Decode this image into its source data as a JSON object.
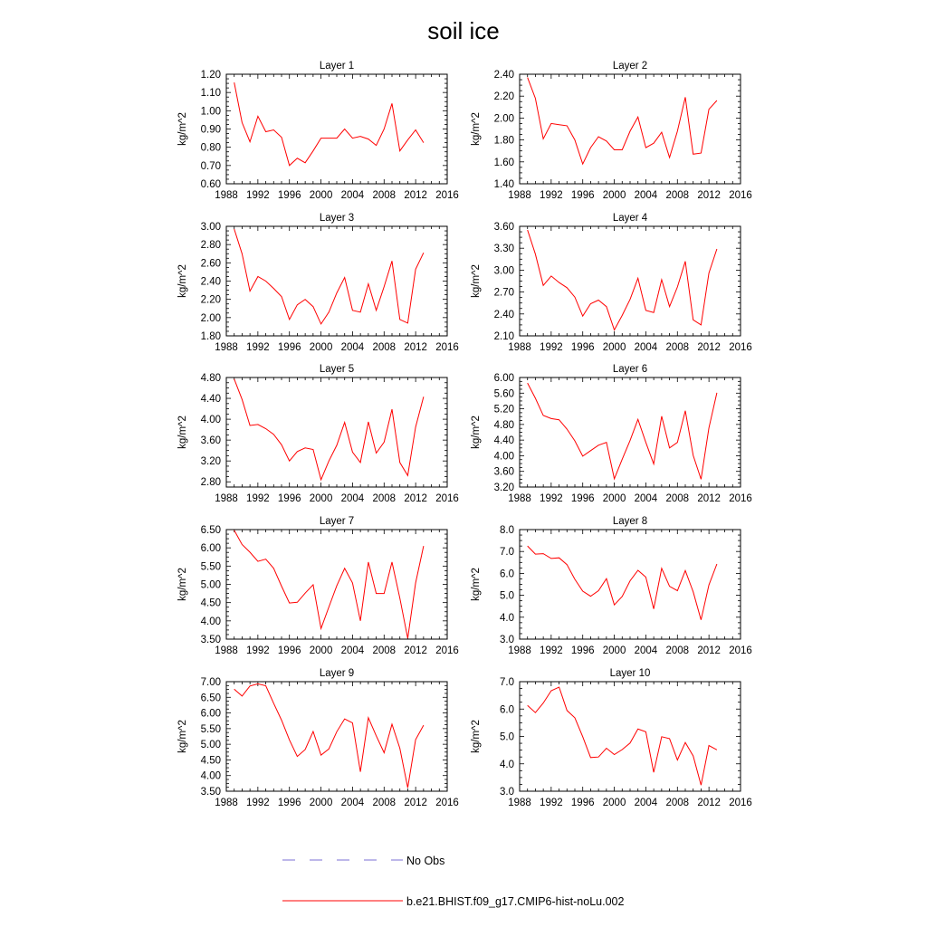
{
  "figure_title": "soil ice",
  "colors": {
    "model": "#ff0000",
    "obs": "#7b6fd6",
    "axes": "#000000"
  },
  "legend": [
    {
      "label": "No Obs",
      "style": "dashed",
      "color": "#7b6fd6"
    },
    {
      "label": "b.e21.BHIST.f09_g17.CMIP6-hist-noLu.002",
      "style": "solid",
      "color": "#ff0000"
    }
  ],
  "chart_data": [
    {
      "type": "line",
      "title": "Layer 1",
      "ylabel": "kg/m^2",
      "xlim": [
        1988,
        2016
      ],
      "xticks": [
        "1988",
        "1992",
        "1996",
        "2000",
        "2004",
        "2008",
        "2012",
        "2016"
      ],
      "ylim": [
        0.6,
        1.2
      ],
      "yticks": [
        "0.60",
        "0.70",
        "0.80",
        "0.90",
        "1.00",
        "1.10",
        "1.20"
      ],
      "x": [
        1989,
        1990,
        1991,
        1992,
        1993,
        1994,
        1995,
        1996,
        1997,
        1998,
        1999,
        2000,
        2001,
        2002,
        2003,
        2004,
        2005,
        2006,
        2007,
        2008,
        2009,
        2010,
        2011,
        2012,
        2013
      ],
      "series": [
        {
          "name": "b.e21.BHIST.f09_g17.CMIP6-hist-noLu.002",
          "values": [
            1.155,
            0.935,
            0.83,
            0.97,
            0.885,
            0.895,
            0.855,
            0.7,
            0.74,
            0.715,
            0.78,
            0.85,
            0.85,
            0.85,
            0.9,
            0.85,
            0.86,
            0.845,
            0.81,
            0.9,
            1.04,
            0.78,
            0.84,
            0.895,
            0.825
          ]
        }
      ]
    },
    {
      "type": "line",
      "title": "Layer 2",
      "ylabel": "kg/m^2",
      "xlim": [
        1988,
        2016
      ],
      "xticks": [
        "1988",
        "1992",
        "1996",
        "2000",
        "2004",
        "2008",
        "2012",
        "2016"
      ],
      "ylim": [
        1.4,
        2.4
      ],
      "yticks": [
        "1.40",
        "1.60",
        "1.80",
        "2.00",
        "2.20",
        "2.40"
      ],
      "x": [
        1989,
        1990,
        1991,
        1992,
        1993,
        1994,
        1995,
        1996,
        1997,
        1998,
        1999,
        2000,
        2001,
        2002,
        2003,
        2004,
        2005,
        2006,
        2007,
        2008,
        2009,
        2010,
        2011,
        2012,
        2013
      ],
      "series": [
        {
          "name": "b.e21.BHIST.f09_g17.CMIP6-hist-noLu.002",
          "values": [
            2.37,
            2.18,
            1.81,
            1.95,
            1.94,
            1.93,
            1.8,
            1.58,
            1.73,
            1.83,
            1.79,
            1.71,
            1.71,
            1.88,
            2.01,
            1.73,
            1.77,
            1.87,
            1.64,
            1.88,
            2.19,
            1.67,
            1.68,
            2.08,
            2.16
          ]
        }
      ]
    },
    {
      "type": "line",
      "title": "Layer 3",
      "ylabel": "kg/m^2",
      "xlim": [
        1988,
        2016
      ],
      "xticks": [
        "1988",
        "1992",
        "1996",
        "2000",
        "2004",
        "2008",
        "2012",
        "2016"
      ],
      "ylim": [
        1.8,
        3.0
      ],
      "yticks": [
        "1.80",
        "2.00",
        "2.20",
        "2.40",
        "2.60",
        "2.80",
        "3.00"
      ],
      "x": [
        1989,
        1990,
        1991,
        1992,
        1993,
        1994,
        1995,
        1996,
        1997,
        1998,
        1999,
        2000,
        2001,
        2002,
        2003,
        2004,
        2005,
        2006,
        2007,
        2008,
        2009,
        2010,
        2011,
        2012,
        2013
      ],
      "series": [
        {
          "name": "b.e21.BHIST.f09_g17.CMIP6-hist-noLu.002",
          "values": [
            2.97,
            2.7,
            2.29,
            2.45,
            2.4,
            2.32,
            2.23,
            1.98,
            2.14,
            2.2,
            2.12,
            1.93,
            2.06,
            2.27,
            2.44,
            2.08,
            2.06,
            2.37,
            2.08,
            2.34,
            2.62,
            1.98,
            1.94,
            2.53,
            2.71
          ]
        }
      ]
    },
    {
      "type": "line",
      "title": "Layer 4",
      "ylabel": "kg/m^2",
      "xlim": [
        1988,
        2016
      ],
      "xticks": [
        "1988",
        "1992",
        "1996",
        "2000",
        "2004",
        "2008",
        "2012",
        "2016"
      ],
      "ylim": [
        2.1,
        3.6
      ],
      "yticks": [
        "2.10",
        "2.40",
        "2.70",
        "3.00",
        "3.30",
        "3.60"
      ],
      "x": [
        1989,
        1990,
        1991,
        1992,
        1993,
        1994,
        1995,
        1996,
        1997,
        1998,
        1999,
        2000,
        2001,
        2002,
        2003,
        2004,
        2005,
        2006,
        2007,
        2008,
        2009,
        2010,
        2011,
        2012,
        2013
      ],
      "series": [
        {
          "name": "b.e21.BHIST.f09_g17.CMIP6-hist-noLu.002",
          "values": [
            3.55,
            3.22,
            2.79,
            2.92,
            2.83,
            2.76,
            2.63,
            2.37,
            2.54,
            2.59,
            2.5,
            2.18,
            2.38,
            2.6,
            2.89,
            2.45,
            2.42,
            2.87,
            2.5,
            2.77,
            3.12,
            2.32,
            2.25,
            2.96,
            3.29
          ]
        }
      ]
    },
    {
      "type": "line",
      "title": "Layer 5",
      "ylabel": "kg/m^2",
      "xlim": [
        1988,
        2016
      ],
      "xticks": [
        "1988",
        "1992",
        "1996",
        "2000",
        "2004",
        "2008",
        "2012",
        "2016"
      ],
      "ylim": [
        2.7,
        4.8
      ],
      "yticks": [
        "2.80",
        "3.20",
        "3.60",
        "4.00",
        "4.40",
        "4.80"
      ],
      "x": [
        1989,
        1990,
        1991,
        1992,
        1993,
        1994,
        1995,
        1996,
        1997,
        1998,
        1999,
        2000,
        2001,
        2002,
        2003,
        2004,
        2005,
        2006,
        2007,
        2008,
        2009,
        2010,
        2011,
        2012,
        2013
      ],
      "series": [
        {
          "name": "b.e21.BHIST.f09_g17.CMIP6-hist-noLu.002",
          "values": [
            4.77,
            4.38,
            3.88,
            3.9,
            3.82,
            3.71,
            3.51,
            3.2,
            3.38,
            3.45,
            3.42,
            2.84,
            3.2,
            3.5,
            3.94,
            3.37,
            3.17,
            3.95,
            3.35,
            3.56,
            4.19,
            3.17,
            2.92,
            3.85,
            4.43
          ]
        }
      ]
    },
    {
      "type": "line",
      "title": "Layer 6",
      "ylabel": "kg/m^2",
      "xlim": [
        1988,
        2016
      ],
      "xticks": [
        "1988",
        "1992",
        "1996",
        "2000",
        "2004",
        "2008",
        "2012",
        "2016"
      ],
      "ylim": [
        3.2,
        6.0
      ],
      "yticks": [
        "3.20",
        "3.60",
        "4.00",
        "4.40",
        "4.80",
        "5.20",
        "5.60",
        "6.00"
      ],
      "x": [
        1989,
        1990,
        1991,
        1992,
        1993,
        1994,
        1995,
        1996,
        1997,
        1998,
        1999,
        2000,
        2001,
        2002,
        2003,
        2004,
        2005,
        2006,
        2007,
        2008,
        2009,
        2010,
        2011,
        2012,
        2013
      ],
      "series": [
        {
          "name": "b.e21.BHIST.f09_g17.CMIP6-hist-noLu.002",
          "values": [
            5.86,
            5.47,
            5.03,
            4.95,
            4.92,
            4.68,
            4.38,
            3.99,
            4.13,
            4.27,
            4.34,
            3.41,
            3.91,
            4.39,
            4.93,
            4.34,
            3.79,
            5.01,
            4.2,
            4.34,
            5.15,
            4.01,
            3.4,
            4.71,
            5.61
          ]
        }
      ]
    },
    {
      "type": "line",
      "title": "Layer 7",
      "ylabel": "kg/m^2",
      "xlim": [
        1988,
        2016
      ],
      "xticks": [
        "1988",
        "1992",
        "1996",
        "2000",
        "2004",
        "2008",
        "2012",
        "2016"
      ],
      "ylim": [
        3.5,
        6.5
      ],
      "yticks": [
        "3.50",
        "4.00",
        "4.50",
        "5.00",
        "5.50",
        "6.00",
        "6.50"
      ],
      "x": [
        1989,
        1990,
        1991,
        1992,
        1993,
        1994,
        1995,
        1996,
        1997,
        1998,
        1999,
        2000,
        2001,
        2002,
        2003,
        2004,
        2005,
        2006,
        2007,
        2008,
        2009,
        2010,
        2011,
        2012,
        2013
      ],
      "series": [
        {
          "name": "b.e21.BHIST.f09_g17.CMIP6-hist-noLu.002",
          "values": [
            6.48,
            6.09,
            5.88,
            5.63,
            5.69,
            5.44,
            4.95,
            4.49,
            4.51,
            4.76,
            4.99,
            3.79,
            4.38,
            4.96,
            5.44,
            5.04,
            4.0,
            5.61,
            4.75,
            4.75,
            5.61,
            4.62,
            3.52,
            5.04,
            6.05
          ]
        }
      ]
    },
    {
      "type": "line",
      "title": "Layer 8",
      "ylabel": "kg/m^2",
      "xlim": [
        1988,
        2016
      ],
      "xticks": [
        "1988",
        "1992",
        "1996",
        "2000",
        "2004",
        "2008",
        "2012",
        "2016"
      ],
      "ylim": [
        3.0,
        8.0
      ],
      "yticks": [
        "3.0",
        "4.0",
        "5.0",
        "6.0",
        "7.0",
        "8.0"
      ],
      "x": [
        1989,
        1990,
        1991,
        1992,
        1993,
        1994,
        1995,
        1996,
        1997,
        1998,
        1999,
        2000,
        2001,
        2002,
        2003,
        2004,
        2005,
        2006,
        2007,
        2008,
        2009,
        2010,
        2011,
        2012,
        2013
      ],
      "series": [
        {
          "name": "b.e21.BHIST.f09_g17.CMIP6-hist-noLu.002",
          "values": [
            7.25,
            6.88,
            6.9,
            6.68,
            6.71,
            6.4,
            5.73,
            5.19,
            4.96,
            5.21,
            5.76,
            4.56,
            4.95,
            5.66,
            6.14,
            5.83,
            4.38,
            6.23,
            5.41,
            5.21,
            6.13,
            5.16,
            3.88,
            5.47,
            6.43
          ]
        }
      ]
    },
    {
      "type": "line",
      "title": "Layer 9",
      "ylabel": "kg/m^2",
      "xlim": [
        1988,
        2016
      ],
      "xticks": [
        "1988",
        "1992",
        "1996",
        "2000",
        "2004",
        "2008",
        "2012",
        "2016"
      ],
      "ylim": [
        3.5,
        7.0
      ],
      "yticks": [
        "3.50",
        "4.00",
        "4.50",
        "5.00",
        "5.50",
        "6.00",
        "6.50",
        "7.00"
      ],
      "x": [
        1989,
        1990,
        1991,
        1992,
        1993,
        1994,
        1995,
        1996,
        1997,
        1998,
        1999,
        2000,
        2001,
        2002,
        2003,
        2004,
        2005,
        2006,
        2007,
        2008,
        2009,
        2010,
        2011,
        2012,
        2013
      ],
      "series": [
        {
          "name": "b.e21.BHIST.f09_g17.CMIP6-hist-noLu.002",
          "values": [
            6.76,
            6.54,
            6.86,
            6.93,
            6.87,
            6.31,
            5.77,
            5.14,
            4.61,
            4.83,
            5.41,
            4.65,
            4.85,
            5.4,
            5.81,
            5.68,
            4.12,
            5.85,
            5.27,
            4.73,
            5.64,
            4.87,
            3.61,
            5.15,
            5.61
          ]
        }
      ]
    },
    {
      "type": "line",
      "title": "Layer 10",
      "ylabel": "kg/m^2",
      "xlim": [
        1988,
        2016
      ],
      "xticks": [
        "1988",
        "1992",
        "1996",
        "2000",
        "2004",
        "2008",
        "2012",
        "2016"
      ],
      "ylim": [
        3.0,
        7.0
      ],
      "yticks": [
        "3.0",
        "4.0",
        "5.0",
        "6.0",
        "7.0"
      ],
      "x": [
        1989,
        1990,
        1991,
        1992,
        1993,
        1994,
        1995,
        1996,
        1997,
        1998,
        1999,
        2000,
        2001,
        2002,
        2003,
        2004,
        2005,
        2006,
        2007,
        2008,
        2009,
        2010,
        2011,
        2012,
        2013
      ],
      "series": [
        {
          "name": "b.e21.BHIST.f09_g17.CMIP6-hist-noLu.002",
          "values": [
            6.13,
            5.87,
            6.22,
            6.67,
            6.8,
            5.95,
            5.68,
            4.99,
            4.23,
            4.25,
            4.57,
            4.34,
            4.52,
            4.76,
            5.27,
            5.17,
            3.69,
            4.99,
            4.92,
            4.14,
            4.78,
            4.29,
            3.22,
            4.67,
            4.51
          ]
        }
      ]
    }
  ]
}
